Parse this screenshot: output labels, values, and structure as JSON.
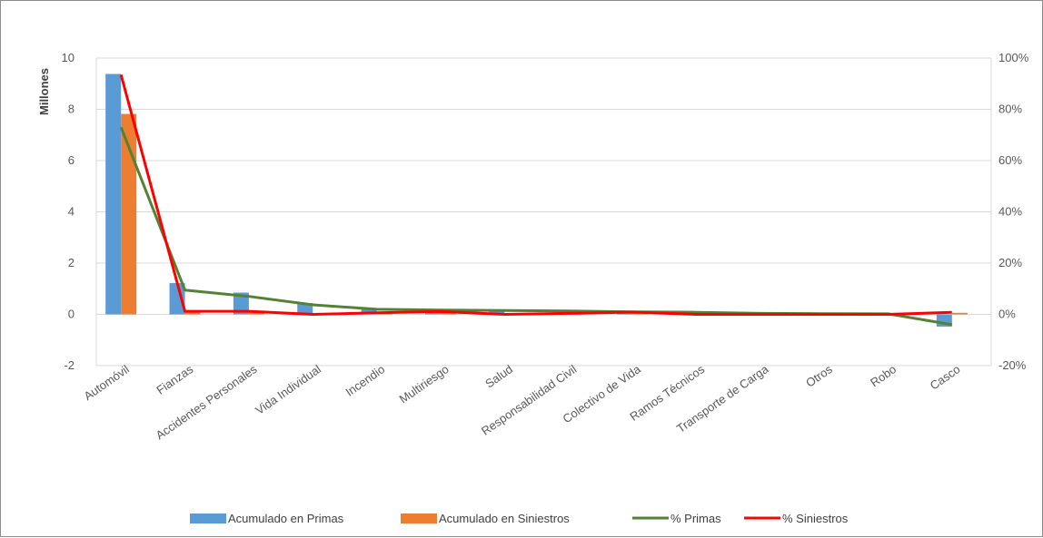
{
  "chart_data": {
    "type": "bar",
    "title": "",
    "ylabel": "Millones",
    "ylim": [
      -2,
      10
    ],
    "y_ticks": [
      "-2",
      "0",
      "2",
      "4",
      "6",
      "8",
      "10"
    ],
    "y2lim": [
      -0.2,
      1.0
    ],
    "y2_ticks": [
      "-20%",
      "0%",
      "20%",
      "40%",
      "60%",
      "80%",
      "100%"
    ],
    "categories": [
      "Automóvil",
      "Fianzas",
      "Accidentes Personales",
      "Vida Individual",
      "Incendio",
      "Multiriesgo",
      "Salud",
      "Responsabilidad Civil",
      "Colectivo de Vida",
      "Ramos Técnicos",
      "Transporte de Carga",
      "Otros",
      "Robo",
      "Casco"
    ],
    "grid": true,
    "legend_position": "bottom",
    "series": [
      {
        "name": "Acumulado en Primas",
        "type": "bar",
        "axis": "left",
        "color": "#5b9bd5",
        "values": [
          9.38,
          1.22,
          0.85,
          0.44,
          0.22,
          0.16,
          0.14,
          0.12,
          0.1,
          0.08,
          0.04,
          0.03,
          0.02,
          -0.48
        ]
      },
      {
        "name": "Acumulado en Siniestros",
        "type": "bar",
        "axis": "left",
        "color": "#ed7d31",
        "values": [
          7.82,
          0.1,
          0.1,
          0.0,
          0.05,
          0.09,
          0.0,
          0.03,
          0.07,
          0.0,
          0.0,
          0.0,
          0.0,
          0.06
        ]
      },
      {
        "name": "% Primas",
        "type": "line",
        "axis": "right",
        "color": "#548235",
        "values": [
          0.73,
          0.095,
          0.07,
          0.037,
          0.02,
          0.017,
          0.015,
          0.013,
          0.01,
          0.008,
          0.004,
          0.003,
          0.002,
          -0.04
        ]
      },
      {
        "name": "% Siniestros",
        "type": "line",
        "axis": "right",
        "color": "#ff0000",
        "values": [
          0.935,
          0.012,
          0.012,
          0.0,
          0.006,
          0.011,
          0.0,
          0.004,
          0.009,
          0.0,
          0.0,
          0.0,
          0.0,
          0.008
        ]
      }
    ]
  }
}
